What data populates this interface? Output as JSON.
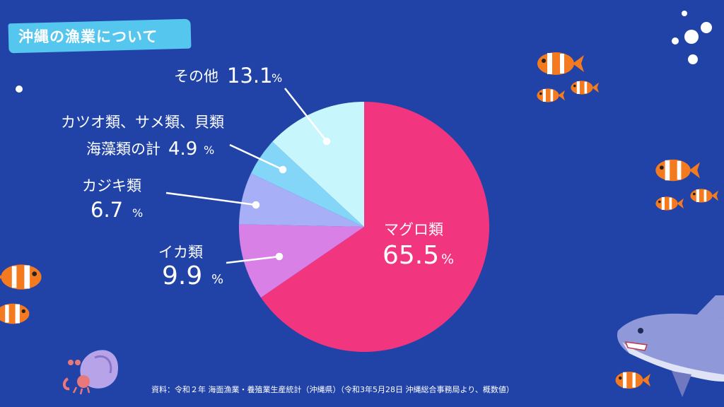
{
  "title": "沖縄の漁業について",
  "chart_data": {
    "type": "pie",
    "title": "沖縄の漁業について",
    "slices": [
      {
        "label": "マグロ類",
        "value": 65.5,
        "color": "#f2357f"
      },
      {
        "label": "イカ類",
        "value": 9.9,
        "color": "#d980e6"
      },
      {
        "label": "カジキ類",
        "value": 6.7,
        "color": "#a7b0f6"
      },
      {
        "label": "カツオ類、サメ類、貝類 海藻類の計",
        "value": 4.9,
        "color": "#83d6f7"
      },
      {
        "label": "その他",
        "value": 13.1,
        "color": "#c7f6fd"
      }
    ],
    "unit": "%"
  },
  "labels": {
    "maguro_name": "マグロ類",
    "maguro_value": "65.5",
    "ika_name": "イカ類",
    "ika_value": "9.9",
    "kajiki_name": "カジキ類",
    "kajiki_value": "6.7",
    "katsuo_line1": "カツオ類、サメ類、貝類",
    "katsuo_line2": "海藻類の計",
    "katsuo_value": "4.9",
    "other_name": "その他",
    "other_value": "13.1",
    "percent": "%"
  },
  "source": "資料：令和２年 海面漁業・養殖業生産統計（沖縄県）（令和3年5月28日 沖縄総合事務局より、概数値）"
}
